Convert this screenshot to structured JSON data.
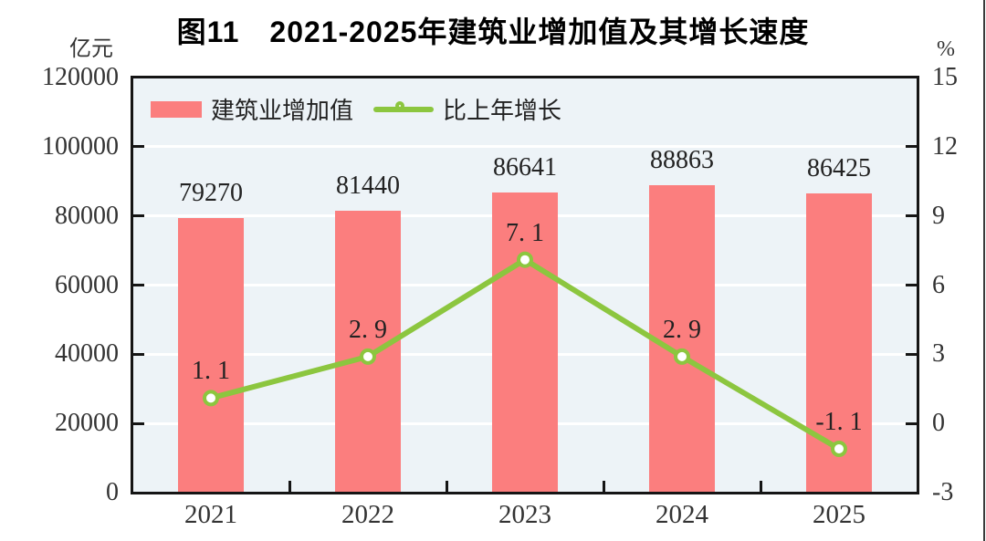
{
  "title": "图11　2021-2025年建筑业增加值及其增长速度",
  "chart_data": {
    "type": "bar+line",
    "title": "图11　2021-2025年建筑业增加值及其增长速度",
    "categories": [
      "2021",
      "2022",
      "2023",
      "2024",
      "2025"
    ],
    "series": [
      {
        "name": "建筑业增加值",
        "type": "bar",
        "axis": "left",
        "values": [
          79270,
          81440,
          86641,
          88863,
          86425
        ],
        "labels": [
          "79270",
          "81440",
          "86641",
          "88863",
          "86425"
        ],
        "color": "#FB7E7E"
      },
      {
        "name": "比上年增长",
        "type": "line",
        "axis": "right",
        "values": [
          1.1,
          2.9,
          7.1,
          2.9,
          -1.1
        ],
        "labels": [
          "1. 1",
          "2. 9",
          "7. 1",
          "2. 9",
          "-1. 1"
        ],
        "color": "#8CC63F",
        "marker": "circle-white-fill"
      }
    ],
    "left_axis": {
      "unit": "亿元",
      "min": 0,
      "max": 120000,
      "ticks": [
        120000,
        100000,
        80000,
        60000,
        40000,
        20000,
        0
      ]
    },
    "right_axis": {
      "unit": "%",
      "min": -3,
      "max": 15,
      "ticks": [
        15,
        12,
        9,
        6,
        3,
        0,
        -3
      ]
    },
    "legend_position": "top-left-inside",
    "grid": true,
    "colors": {
      "plot_bg": "#EDF3F7",
      "grid": "#FFFFFF",
      "frame": "#151515",
      "text": "#222222"
    }
  }
}
